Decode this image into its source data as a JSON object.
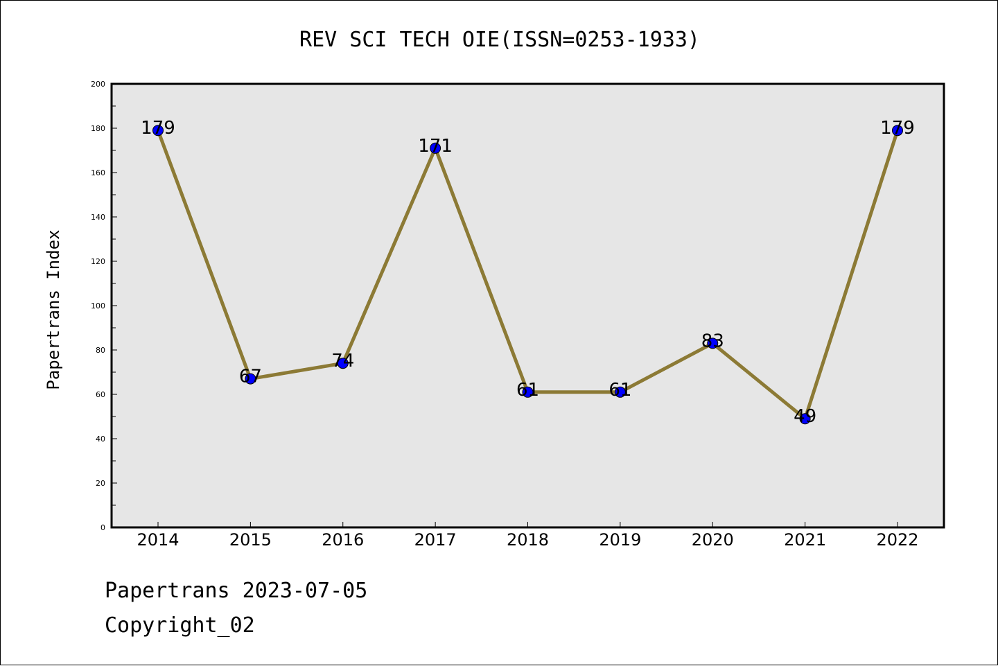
{
  "chart_data": {
    "type": "line",
    "title": "REV SCI TECH OIE(ISSN=0253-1933)",
    "xlabel": "",
    "ylabel": "Papertrans Index",
    "categories": [
      "2014",
      "2015",
      "2016",
      "2017",
      "2018",
      "2019",
      "2020",
      "2021",
      "2022"
    ],
    "values": [
      179,
      67,
      74,
      171,
      61,
      61,
      83,
      49,
      179
    ],
    "data_labels": [
      "179",
      "67",
      "74",
      "171",
      "61",
      "61",
      "83",
      "49",
      "179"
    ],
    "yticks": [
      "0",
      "20",
      "40",
      "60",
      "80",
      "100",
      "120",
      "140",
      "160",
      "180",
      "200"
    ],
    "ylim": [
      0,
      200
    ],
    "grid": false,
    "legend": "none",
    "colors": {
      "line": "#8c7a35",
      "marker": "#0000ff",
      "plot_background": "#e6e6e6"
    }
  },
  "footer": {
    "date_line": "Papertrans 2023-07-05",
    "copyright_line": "Copyright_02"
  }
}
